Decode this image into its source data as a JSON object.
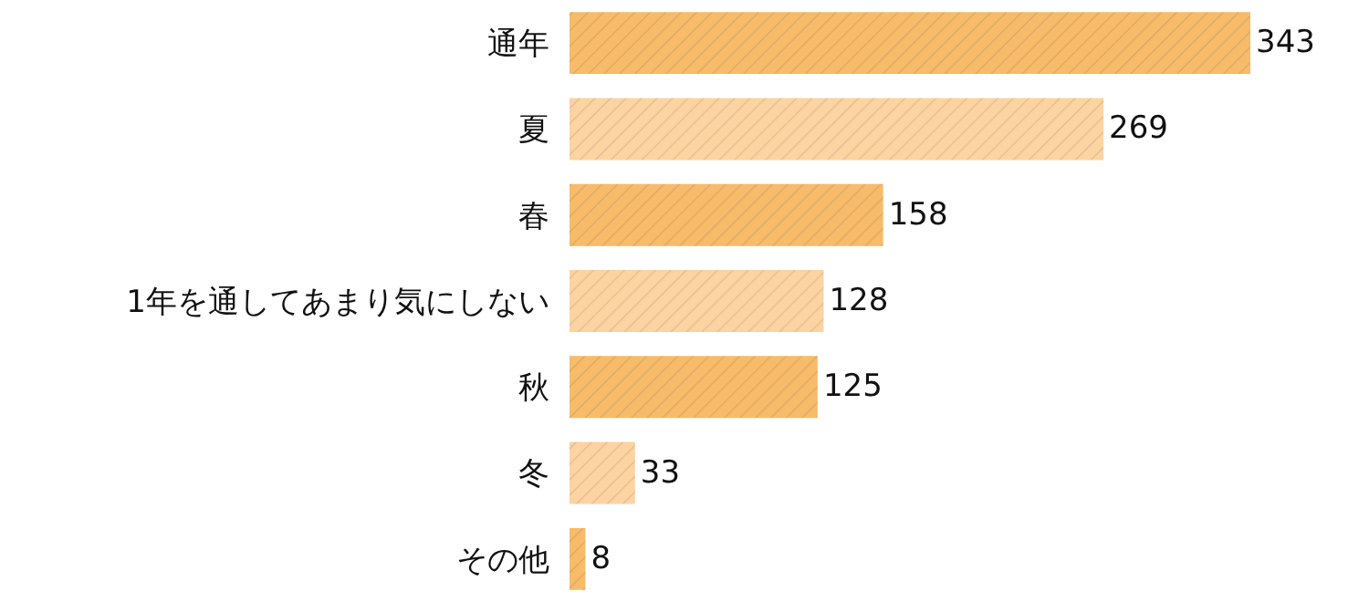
{
  "chart_data": {
    "type": "bar",
    "orientation": "horizontal",
    "categories": [
      "通年",
      "夏",
      "春",
      "1年を通してあまり気にしない",
      "秋",
      "冬",
      "その他"
    ],
    "values": [
      343,
      269,
      158,
      128,
      125,
      33,
      8
    ],
    "colors": [
      "#f7bb6a",
      "#fcd3a1",
      "#f7bb6a",
      "#fcd3a1",
      "#f7bb6a",
      "#fcd3a1",
      "#f7bb6a"
    ],
    "data_labels": true,
    "tick_labels": "y"
  }
}
